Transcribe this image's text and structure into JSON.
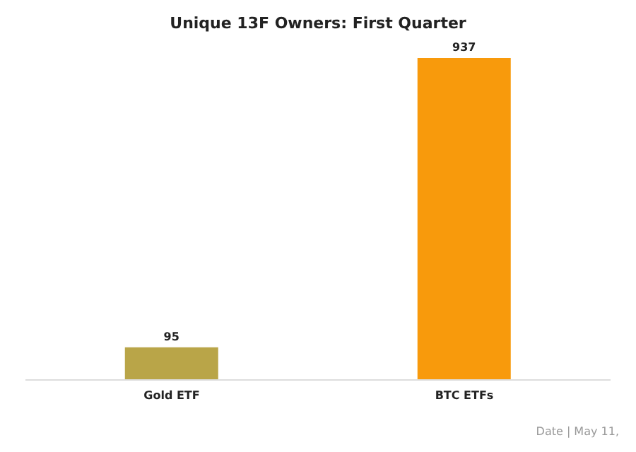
{
  "chart_data": {
    "type": "bar",
    "title": "Unique 13F Owners: First Quarter",
    "categories": [
      "Gold ETF",
      "BTC ETFs"
    ],
    "values": [
      95,
      937
    ],
    "colors": [
      "#b9a548",
      "#f89a0c"
    ],
    "data_labels": true,
    "annotations": [
      "Date | May 11,"
    ]
  }
}
